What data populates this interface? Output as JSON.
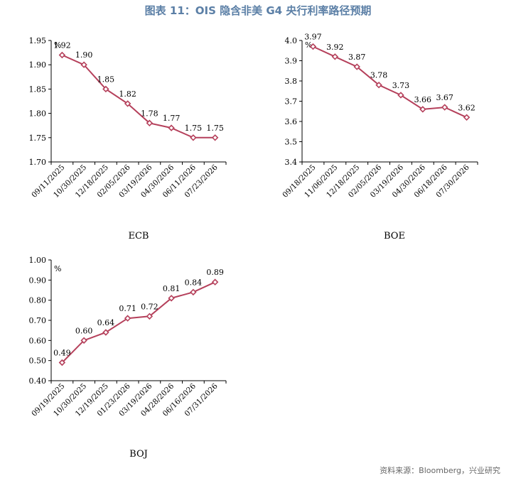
{
  "title": "图表 11：OIS 隐含非美 G4 央行利率路径预期",
  "source": "资料来源：Bloomberg，兴业研究",
  "colors": {
    "series": "#b5405b",
    "title": "#5b7fa6"
  },
  "chart_data": [
    {
      "type": "line",
      "title": "ECB",
      "unit": "%",
      "x": [
        "09/11/2025",
        "10/30/2025",
        "12/18/2025",
        "02/05/2026",
        "03/19/2026",
        "04/30/2026",
        "06/11/2026",
        "07/23/2026"
      ],
      "values": [
        1.92,
        1.9,
        1.85,
        1.82,
        1.78,
        1.77,
        1.75,
        1.75
      ],
      "labels": [
        "1.92",
        "1.90",
        "1.85",
        "1.82",
        "1.78",
        "1.77",
        "1.75",
        "1.75"
      ],
      "ylim": [
        1.7,
        1.95
      ],
      "yticks": [
        "1.70",
        "1.75",
        "1.80",
        "1.85",
        "1.90",
        "1.95"
      ]
    },
    {
      "type": "line",
      "title": "BOE",
      "unit": "%",
      "x": [
        "09/18/2025",
        "11/06/2025",
        "12/18/2025",
        "02/05/2026",
        "03/19/2026",
        "04/30/2026",
        "06/18/2026",
        "07/30/2026"
      ],
      "values": [
        3.97,
        3.92,
        3.87,
        3.78,
        3.73,
        3.66,
        3.67,
        3.62
      ],
      "labels": [
        "3.97",
        "3.92",
        "3.87",
        "3.78",
        "3.73",
        "3.66",
        "3.67",
        "3.62"
      ],
      "ylim": [
        3.4,
        4.0
      ],
      "yticks": [
        "3.4",
        "3.5",
        "3.6",
        "3.7",
        "3.8",
        "3.9",
        "4.0"
      ]
    },
    {
      "type": "line",
      "title": "BOJ",
      "unit": "%",
      "x": [
        "09/19/2025",
        "10/30/2025",
        "12/19/2025",
        "01/23/2026",
        "03/19/2026",
        "04/28/2026",
        "06/16/2026",
        "07/31/2026"
      ],
      "values": [
        0.49,
        0.6,
        0.64,
        0.71,
        0.72,
        0.81,
        0.84,
        0.89
      ],
      "labels": [
        "0.49",
        "0.60",
        "0.64",
        "0.71",
        "0.72",
        "0.81",
        "0.84",
        "0.89"
      ],
      "ylim": [
        0.4,
        1.0
      ],
      "yticks": [
        "0.40",
        "0.50",
        "0.60",
        "0.70",
        "0.80",
        "0.90",
        "1.00"
      ]
    }
  ]
}
